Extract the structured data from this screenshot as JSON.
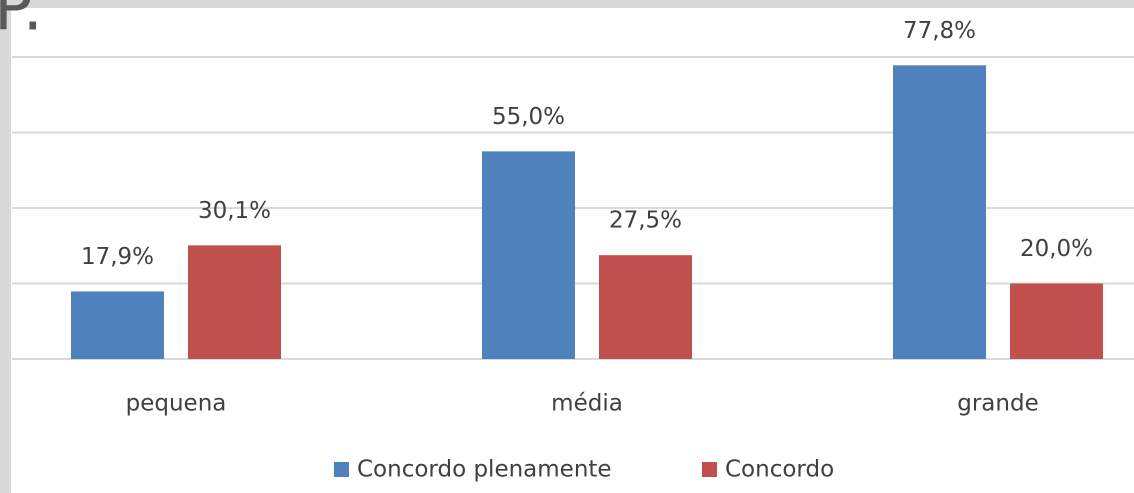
{
  "chart_data": {
    "type": "bar",
    "title": "P.",
    "categories": [
      "pequena",
      "média",
      "grande"
    ],
    "series": [
      {
        "name": "Concordo plenamente",
        "color": "#4f81bd",
        "values": [
          17.9,
          55.0,
          77.8
        ],
        "value_labels": [
          "17,9%",
          "55,0%",
          "77,8%"
        ]
      },
      {
        "name": "Concordo",
        "color": "#c0504d",
        "values": [
          30.1,
          27.5,
          20.0
        ],
        "value_labels": [
          "30,1%",
          "27,5%",
          "20,0%"
        ]
      }
    ],
    "ylim": [
      0,
      80
    ],
    "yticks": [
      0,
      20,
      40,
      60,
      80
    ],
    "grid": true,
    "legend": "bottom"
  }
}
